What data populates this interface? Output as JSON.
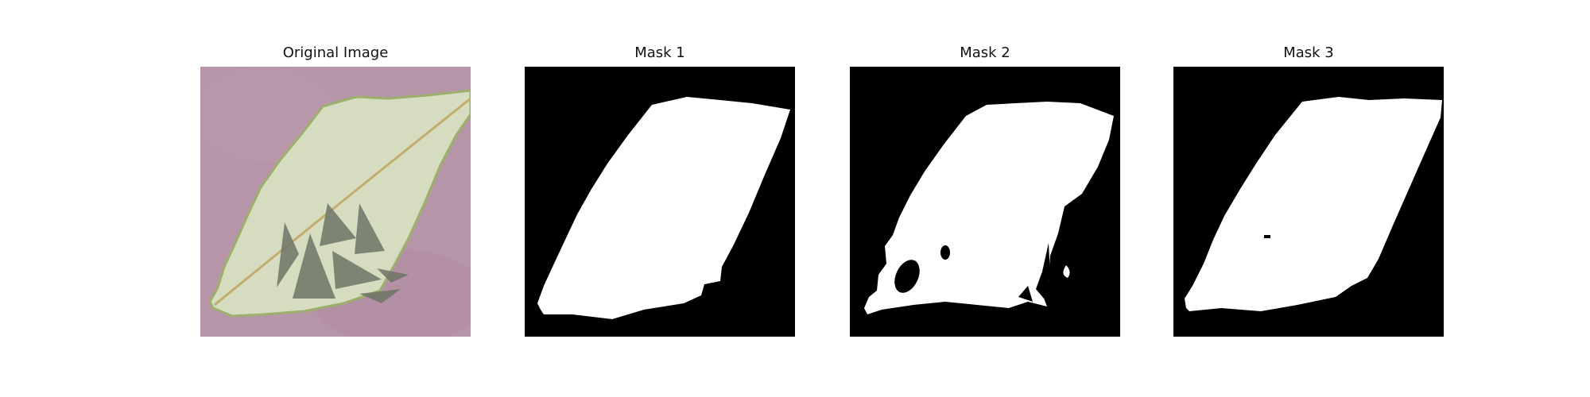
{
  "figure": {
    "panels": [
      {
        "id": "original",
        "title": "Original Image"
      },
      {
        "id": "mask1",
        "title": "Mask 1"
      },
      {
        "id": "mask2",
        "title": "Mask 2"
      },
      {
        "id": "mask3",
        "title": "Mask 3"
      }
    ]
  },
  "colors": {
    "background": "#b795a9",
    "leaf": "#d5dcc0",
    "leaf_edge": "#9cb06c",
    "vein": "#c2ad6c",
    "shadow": "#6f7466",
    "mask_bg": "#000000",
    "mask_fg": "#ffffff"
  }
}
